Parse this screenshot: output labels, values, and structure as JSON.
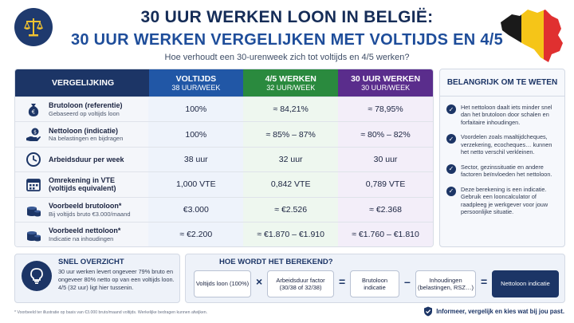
{
  "header": {
    "title_line1": "30 UUR WERKEN LOON IN BELGIË:",
    "title_line2": "30 UUR WERKEN VERGELIJKEN MET VOLTIJDS EN 4/5",
    "subtitle": "Hoe verhoudt een 30-urenweek zich tot voltijds en 4/5 werken?"
  },
  "colors": {
    "navy": "#1c3566",
    "blue": "#2157a6",
    "green": "#2a8a3e",
    "purple": "#5a2d8c"
  },
  "table": {
    "columns": [
      {
        "label": "VERGELIJKING",
        "sub": ""
      },
      {
        "label": "VOLTIJDS",
        "sub": "38 UUR/WEEK"
      },
      {
        "label": "4/5 WERKEN",
        "sub": "32 UUR/WEEK"
      },
      {
        "label": "30 UUR WERKEN",
        "sub": "30 UUR/WEEK"
      }
    ],
    "rows": [
      {
        "icon": "money-bag-icon",
        "label": "Brutoloon (referentie)",
        "note": "Gebaseerd op voltijds loon",
        "values": [
          "100%",
          "≈ 84,21%",
          "≈ 78,95%"
        ]
      },
      {
        "icon": "hand-coin-icon",
        "label": "Nettoloon (indicatie)",
        "note": "Na belastingen en bijdragen",
        "values": [
          "100%",
          "≈ 85% – 87%",
          "≈ 80% – 82%"
        ]
      },
      {
        "icon": "clock-icon",
        "label": "Arbeidsduur per week",
        "note": "",
        "values": [
          "38 uur",
          "32 uur",
          "30 uur"
        ]
      },
      {
        "icon": "calendar-icon",
        "label": "Omrekening in VTE",
        "note": "(voltijds equivalent)",
        "values": [
          "1,000 VTE",
          "0,842 VTE",
          "0,789 VTE"
        ]
      },
      {
        "icon": "coin-stack-icon",
        "label": "Voorbeeld brutoloon*",
        "note": "Bij voltijds bruto €3.000/maand",
        "values": [
          "€3.000",
          "≈ €2.526",
          "≈ €2.368"
        ]
      },
      {
        "icon": "coin-stack-icon",
        "label": "Voorbeeld nettoloon*",
        "note": "Indicatie na inhoudingen",
        "values": [
          "≈ €2.200",
          "≈ €1.870 – €1.910",
          "≈ €1.760 – €1.810"
        ]
      }
    ]
  },
  "side": {
    "title": "BELANGRIJK OM TE WETEN",
    "tips": [
      "Het nettoloon daalt iets minder snel dan het brutoloon door schalen en forfaitaire inhoudingen.",
      "Voordelen zoals maaltijdcheques, verzekering, ecocheques… kunnen het netto verschil verkleinen.",
      "Sector, gezinssituatie en andere factoren beïnvloeden het nettoloon.",
      "Deze berekening is een indicatie. Gebruik een looncalculator of raadpleeg je werkgever voor jouw persoonlijke situatie."
    ]
  },
  "summary": {
    "title": "SNEL OVERZICHT",
    "text": "30 uur werken levert ongeveer 79% bruto en ongeveer 80% netto op van een voltijds loon. 4/5 (32 uur) ligt hier tussenin."
  },
  "calc": {
    "title": "HOE WORDT HET BEREKEND?",
    "box1": "Voltijds loon (100%)",
    "box2": "Arbeidsduur factor (30/38 of 32/38)",
    "box3": "Brutoloon indicatie",
    "box4": "Inhoudingen (belastingen, RSZ…)",
    "box5": "Nettoloon indicatie",
    "op1": "×",
    "op2": "=",
    "op3": "–",
    "op4": "="
  },
  "footer": {
    "note": "* Voorbeeld ter illustratie op basis van €3.000 bruto/maand voltijds. Werkelijke bedragen kunnen afwijken.",
    "brand": "Informeer, vergelijk en kies wat bij jou past."
  }
}
